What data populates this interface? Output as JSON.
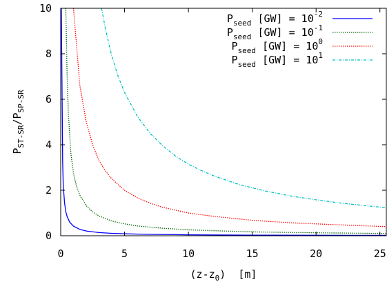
{
  "chart_data": {
    "type": "line",
    "xlabel": {
      "base": "(z-z",
      "sub": "0",
      "tail": ")  [m]"
    },
    "ylabel": {
      "base": "P",
      "sub1": "ST-SR",
      "mid": "/P",
      "sub2": "SP-SR"
    },
    "xlim": [
      0,
      25.5
    ],
    "ylim": [
      0,
      10
    ],
    "x_ticks": [
      0,
      5,
      10,
      15,
      20,
      25
    ],
    "y_ticks": [
      0,
      2,
      4,
      6,
      8,
      10
    ],
    "grid": false,
    "legend_position": "top-right",
    "series": [
      {
        "name": "10^-2",
        "legend": {
          "base": "P",
          "sub": "seed",
          "mid": " [GW] = 10",
          "sup": "-2"
        },
        "color": "#0000ff",
        "dash": "solid",
        "x": [
          0.05,
          0.1,
          0.15,
          0.2,
          0.3,
          0.4,
          0.5,
          0.7,
          1.0,
          1.5,
          2.0,
          3.0,
          4.0,
          5.0,
          7.0,
          10.0,
          15.0,
          20.0,
          25.5
        ],
        "y": [
          10.0,
          6.6,
          3.3,
          2.2,
          1.44,
          1.06,
          0.84,
          0.6,
          0.42,
          0.28,
          0.21,
          0.14,
          0.105,
          0.084,
          0.06,
          0.042,
          0.028,
          0.021,
          0.017
        ]
      },
      {
        "name": "10^-1",
        "legend": {
          "base": "P",
          "sub": "seed",
          "mid": " [GW] = 10",
          "sup": "-1"
        },
        "color": "#006400",
        "dash": "dotted",
        "x": [
          0.4,
          0.5,
          0.6,
          0.8,
          1.0,
          1.25,
          1.5,
          2.0,
          2.5,
          3.0,
          4.0,
          5.0,
          6.0,
          8.0,
          10.0,
          12.0,
          15.0,
          20.0,
          25.5
        ],
        "y": [
          10.0,
          7.0,
          5.4,
          3.6,
          2.75,
          2.15,
          1.78,
          1.32,
          1.05,
          0.87,
          0.65,
          0.52,
          0.43,
          0.33,
          0.26,
          0.22,
          0.17,
          0.13,
          0.1
        ]
      },
      {
        "name": "10^0",
        "legend": {
          "base": "P",
          "sub": "seed",
          "mid": " [GW] = 10",
          "sup": "0"
        },
        "color": "#ff0000",
        "dash": "dotted",
        "x": [
          1.0,
          1.5,
          2.0,
          2.5,
          3.0,
          3.5,
          4.0,
          5.0,
          6.0,
          7.0,
          8.0,
          10.0,
          12.0,
          15.0,
          18.0,
          20.0,
          25.5
        ],
        "y": [
          10.0,
          6.6,
          5.0,
          4.0,
          3.3,
          2.85,
          2.5,
          2.0,
          1.67,
          1.43,
          1.25,
          1.0,
          0.85,
          0.68,
          0.57,
          0.52,
          0.4
        ]
      },
      {
        "name": "10^1",
        "legend": {
          "base": "P",
          "sub": "seed",
          "mid": " [GW] = 10",
          "sup": "1"
        },
        "color": "#00c0c0",
        "dash": "dashdot",
        "x": [
          3.2,
          3.5,
          4.0,
          4.5,
          5.0,
          6.0,
          7.0,
          8.0,
          9.0,
          10.0,
          11.0,
          12.0,
          14.0,
          16.0,
          18.0,
          20.0,
          22.0,
          25.5
        ],
        "y": [
          10.0,
          9.1,
          7.9,
          7.0,
          6.3,
          5.25,
          4.5,
          3.95,
          3.5,
          3.15,
          2.87,
          2.63,
          2.25,
          1.97,
          1.75,
          1.58,
          1.43,
          1.23
        ]
      }
    ]
  }
}
